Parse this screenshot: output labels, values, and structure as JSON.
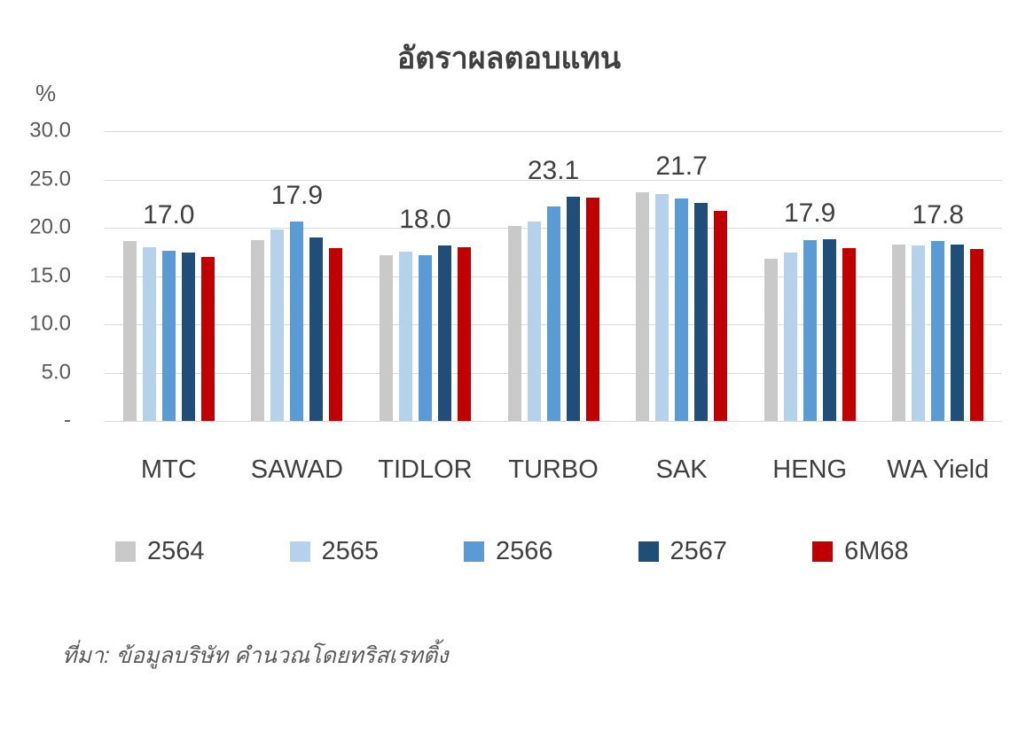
{
  "chart_data": {
    "type": "bar",
    "title": "อัตราผลตอบแทน",
    "ylabel": "%",
    "xlabel": "",
    "ylim": [
      0,
      30
    ],
    "ytick_step": 5,
    "yticks": [
      "30.0",
      "25.0",
      "20.0",
      "15.0",
      "10.0",
      "5.0",
      "-"
    ],
    "grid": true,
    "legend_position": "bottom",
    "categories": [
      "MTC",
      "SAWAD",
      "TIDLOR",
      "TURBO",
      "SAK",
      "HENG",
      "WA Yield"
    ],
    "series": [
      {
        "name": "2564",
        "color": "#c9c9c9",
        "values": [
          18.6,
          18.7,
          17.2,
          20.2,
          23.7,
          16.8,
          18.3
        ]
      },
      {
        "name": "2565",
        "color": "#b4d2ec",
        "values": [
          18.0,
          19.8,
          17.5,
          20.6,
          23.5,
          17.4,
          18.2
        ]
      },
      {
        "name": "2566",
        "color": "#5b9bd5",
        "values": [
          17.6,
          20.6,
          17.2,
          22.2,
          23.0,
          18.7,
          18.6
        ]
      },
      {
        "name": "2567",
        "color": "#1f4e79",
        "values": [
          17.4,
          19.0,
          18.2,
          23.2,
          22.6,
          18.8,
          18.3
        ]
      },
      {
        "name": "6M68",
        "color": "#c00000",
        "values": [
          17.0,
          17.9,
          18.0,
          23.1,
          21.7,
          17.9,
          17.8
        ]
      }
    ],
    "data_labels": [
      "17.0",
      "17.9",
      "18.0",
      "23.1",
      "21.7",
      "17.9",
      "17.8"
    ]
  },
  "source_note": "ที่มา: ข้อมูลบริษัท คำนวณโดยทริสเรทติ้ง"
}
